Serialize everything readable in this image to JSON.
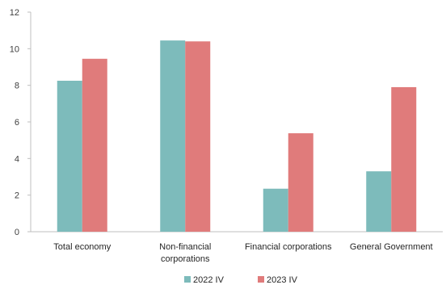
{
  "chart_data": {
    "type": "bar",
    "categories": [
      [
        "Total economy"
      ],
      [
        "Non-financial",
        "corporations"
      ],
      [
        "Financial corporations"
      ],
      [
        "General Government"
      ]
    ],
    "series": [
      {
        "name": "2022 IV",
        "values": [
          8.25,
          10.45,
          2.35,
          3.3
        ],
        "color": "#7dbbbb"
      },
      {
        "name": "2023 IV",
        "values": [
          9.45,
          10.4,
          5.38,
          7.9
        ],
        "color": "#e07b7b"
      }
    ],
    "yticks": [
      0,
      2,
      4,
      6,
      8,
      10,
      12
    ],
    "ylim": [
      0,
      12
    ],
    "grid": false,
    "legend_position": "bottom-center",
    "title": "",
    "xlabel": "",
    "ylabel": ""
  }
}
